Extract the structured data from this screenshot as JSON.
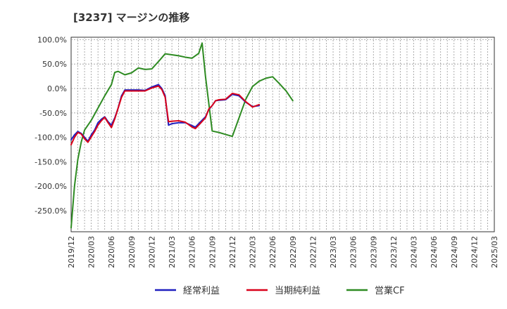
{
  "chart_data": {
    "type": "line",
    "title": "[3237]  マージンの推移",
    "xlabel": "",
    "ylabel": "",
    "ylim": [
      -300,
      110
    ],
    "yticks": [
      100,
      50,
      0,
      -50,
      -100,
      -150,
      -200,
      -250
    ],
    "ytick_labels": [
      "100.0%",
      "50.0%",
      "0.0%",
      "-50.0%",
      "-100.0%",
      "-150.0%",
      "-200.0%",
      "-250.0%"
    ],
    "xtick_labels": [
      "2019/12",
      "2020/03",
      "2020/06",
      "2020/09",
      "2020/12",
      "2021/03",
      "2021/06",
      "2021/09",
      "2021/12",
      "2022/03",
      "2022/06",
      "2022/09",
      "2022/12",
      "2023/03",
      "2023/06",
      "2023/09",
      "2023/12",
      "2024/03",
      "2024/06",
      "2024/09",
      "2024/12",
      "2025/03"
    ],
    "grid": true,
    "legend_position": "bottom",
    "series": [
      {
        "name": "経常利益",
        "color": "#1f1fbf",
        "points": [
          [
            0,
            -105
          ],
          [
            0.5,
            -95
          ],
          [
            1,
            -88
          ],
          [
            1.5,
            -92
          ],
          [
            2,
            -100
          ],
          [
            2.5,
            -108
          ],
          [
            3,
            -95
          ],
          [
            3.5,
            -85
          ],
          [
            4,
            -70
          ],
          [
            4.5,
            -63
          ],
          [
            5,
            -58
          ],
          [
            5.5,
            -68
          ],
          [
            6,
            -75
          ],
          [
            6.5,
            -60
          ],
          [
            7,
            -40
          ],
          [
            7.5,
            -15
          ],
          [
            8,
            -3
          ],
          [
            9,
            -3
          ],
          [
            10,
            -3
          ],
          [
            11,
            -4
          ],
          [
            12,
            3
          ],
          [
            13,
            8
          ],
          [
            13.5,
            0
          ],
          [
            14,
            -15
          ],
          [
            14.5,
            -75
          ],
          [
            15,
            -72
          ],
          [
            16,
            -70
          ],
          [
            17,
            -70
          ],
          [
            18,
            -76
          ],
          [
            18.5,
            -79
          ],
          [
            19,
            -72
          ],
          [
            20,
            -58
          ],
          [
            20.5,
            -43
          ],
          [
            21,
            -35
          ],
          [
            21.5,
            -25
          ],
          [
            22,
            -24
          ],
          [
            23,
            -23
          ],
          [
            24,
            -12
          ],
          [
            25,
            -15
          ],
          [
            26,
            -28
          ],
          [
            27,
            -37
          ],
          [
            28,
            -35
          ]
        ]
      },
      {
        "name": "当期純利益",
        "color": "#d9001a",
        "points": [
          [
            0,
            -115
          ],
          [
            0.5,
            -100
          ],
          [
            1,
            -90
          ],
          [
            1.5,
            -93
          ],
          [
            2,
            -103
          ],
          [
            2.5,
            -110
          ],
          [
            3,
            -99
          ],
          [
            3.5,
            -88
          ],
          [
            4,
            -75
          ],
          [
            4.5,
            -66
          ],
          [
            5,
            -59
          ],
          [
            5.5,
            -70
          ],
          [
            6,
            -80
          ],
          [
            6.5,
            -62
          ],
          [
            7,
            -40
          ],
          [
            7.5,
            -18
          ],
          [
            8,
            -5
          ],
          [
            9,
            -5
          ],
          [
            10,
            -5
          ],
          [
            11,
            -5
          ],
          [
            12,
            1
          ],
          [
            13,
            5
          ],
          [
            13.5,
            -2
          ],
          [
            14,
            -18
          ],
          [
            14.5,
            -68
          ],
          [
            15,
            -67
          ],
          [
            16,
            -66
          ],
          [
            17,
            -69
          ],
          [
            18,
            -79
          ],
          [
            18.5,
            -82
          ],
          [
            19,
            -75
          ],
          [
            20,
            -60
          ],
          [
            20.5,
            -42
          ],
          [
            21,
            -35
          ],
          [
            21.5,
            -25
          ],
          [
            22,
            -23
          ],
          [
            23,
            -22
          ],
          [
            24,
            -10
          ],
          [
            25,
            -13
          ],
          [
            26,
            -27
          ],
          [
            27,
            -38
          ],
          [
            28,
            -33
          ]
        ]
      },
      {
        "name": "営業CF",
        "color": "#2e8b22",
        "points": [
          [
            0,
            -285
          ],
          [
            0.5,
            -200
          ],
          [
            1,
            -145
          ],
          [
            1.5,
            -110
          ],
          [
            2,
            -85
          ],
          [
            3,
            -65
          ],
          [
            4,
            -40
          ],
          [
            5,
            -15
          ],
          [
            6,
            8
          ],
          [
            6.5,
            33
          ],
          [
            7,
            35
          ],
          [
            8,
            28
          ],
          [
            9,
            32
          ],
          [
            10,
            42
          ],
          [
            11,
            39
          ],
          [
            12,
            40
          ],
          [
            13,
            55
          ],
          [
            14,
            71
          ],
          [
            15,
            69
          ],
          [
            16,
            67
          ],
          [
            17,
            64
          ],
          [
            18,
            62
          ],
          [
            19,
            72
          ],
          [
            19.5,
            93
          ],
          [
            20,
            25
          ],
          [
            21,
            -87
          ],
          [
            22,
            -90
          ],
          [
            23,
            -94
          ],
          [
            24,
            -98
          ],
          [
            25,
            -60
          ],
          [
            26,
            -22
          ],
          [
            27,
            4
          ],
          [
            28,
            15
          ],
          [
            29,
            21
          ],
          [
            30,
            24
          ],
          [
            31,
            10
          ],
          [
            32,
            -5
          ],
          [
            33,
            -25
          ]
        ]
      }
    ]
  }
}
